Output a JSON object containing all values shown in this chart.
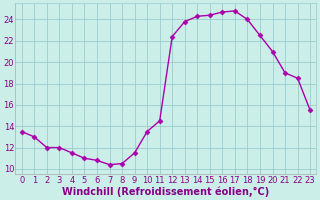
{
  "x": [
    0,
    1,
    2,
    3,
    4,
    5,
    6,
    7,
    8,
    9,
    10,
    11,
    12,
    13,
    14,
    15,
    16,
    17,
    18,
    19,
    20,
    21,
    22,
    23
  ],
  "y": [
    13.5,
    13.0,
    12.0,
    12.0,
    11.5,
    11.0,
    10.8,
    10.4,
    10.5,
    11.5,
    13.5,
    14.5,
    22.4,
    23.8,
    24.3,
    24.4,
    24.7,
    24.8,
    24.0,
    22.5,
    21.0,
    19.0,
    18.5,
    15.5
  ],
  "line_color": "#aa00aa",
  "marker": "D",
  "marker_size": 2.5,
  "bg_color": "#cceee8",
  "grid_color": "#99cccc",
  "xlabel": "Windchill (Refroidissement éolien,°C)",
  "xlabel_color": "#880088",
  "tick_color": "#880088",
  "ylabel_ticks": [
    10,
    12,
    14,
    16,
    18,
    20,
    22,
    24
  ],
  "xlim": [
    -0.5,
    23.5
  ],
  "ylim": [
    9.5,
    25.5
  ],
  "xticks": [
    0,
    1,
    2,
    3,
    4,
    5,
    6,
    7,
    8,
    9,
    10,
    11,
    12,
    13,
    14,
    15,
    16,
    17,
    18,
    19,
    20,
    21,
    22,
    23
  ],
  "font_size_ticks": 6.0,
  "font_size_xlabel": 7.0,
  "line_width": 1.0
}
